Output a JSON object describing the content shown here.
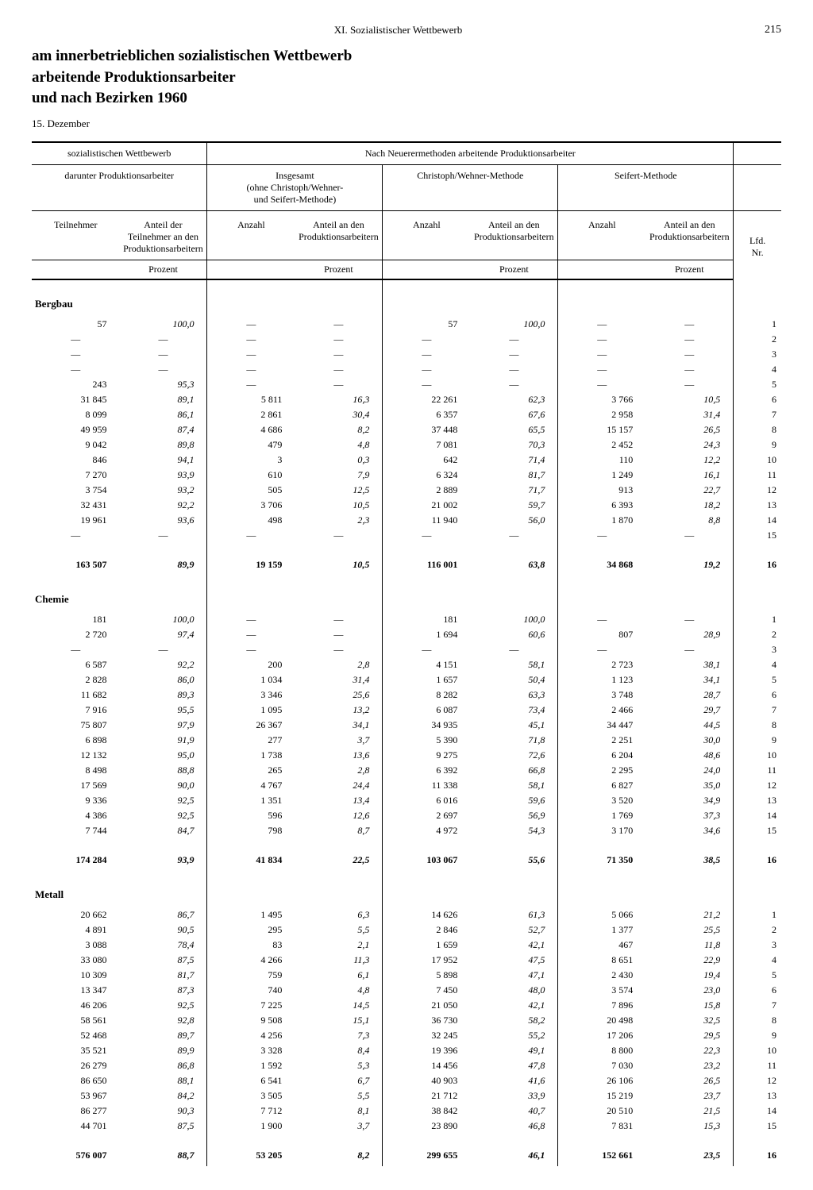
{
  "running_head": "XI. Sozialistischer Wettbewerb",
  "page_number": "215",
  "title_line1": "am innerbetrieblichen sozialistischen Wettbewerb",
  "title_line2": "arbeitende Produktionsarbeiter",
  "title_line3": "und nach Bezirken 1960",
  "survey_date": "15. Dezember",
  "header": {
    "group_left": "sozialistischen Wettbewerb",
    "group_right": "Nach Neuerermethoden arbeitende Produktionsarbeiter",
    "sub_left": "darunter Produktionsarbeiter",
    "sub_insg": "Insgesamt\n(ohne Christoph/Wehner-\nund Seifert-Methode)",
    "sub_cw": "Christoph/Wehner-Methode",
    "sub_seif": "Seifert-Methode",
    "col_teilnehmer": "Teilnehmer",
    "col_anteil_teiln": "Anteil der Teilnehmer an den Produktions­arbeitern",
    "col_anzahl": "Anzahl",
    "col_anteil_prod": "Anteil an den Produktions­arbeitern",
    "col_lfd": "Lfd.\nNr.",
    "unit_prozent": "Prozent"
  },
  "sections": [
    {
      "name": "Bergbau",
      "rows": [
        [
          "57",
          "100,0",
          "—",
          "—",
          "57",
          "100,0",
          "—",
          "—",
          "1"
        ],
        [
          "—",
          "—",
          "—",
          "—",
          "—",
          "—",
          "—",
          "—",
          "2"
        ],
        [
          "—",
          "—",
          "—",
          "—",
          "—",
          "—",
          "—",
          "—",
          "3"
        ],
        [
          "—",
          "—",
          "—",
          "—",
          "—",
          "—",
          "—",
          "—",
          "4"
        ],
        [
          "243",
          "95,3",
          "—",
          "—",
          "—",
          "—",
          "—",
          "—",
          "5"
        ],
        [
          "31 845",
          "89,1",
          "5 811",
          "16,3",
          "22 261",
          "62,3",
          "3 766",
          "10,5",
          "6"
        ],
        [
          "8 099",
          "86,1",
          "2 861",
          "30,4",
          "6 357",
          "67,6",
          "2 958",
          "31,4",
          "7"
        ],
        [
          "49 959",
          "87,4",
          "4 686",
          "8,2",
          "37 448",
          "65,5",
          "15 157",
          "26,5",
          "8"
        ],
        [
          "9 042",
          "89,8",
          "479",
          "4,8",
          "7 081",
          "70,3",
          "2 452",
          "24,3",
          "9"
        ],
        [
          "846",
          "94,1",
          "3",
          "0,3",
          "642",
          "71,4",
          "110",
          "12,2",
          "10"
        ],
        [
          "7 270",
          "93,9",
          "610",
          "7,9",
          "6 324",
          "81,7",
          "1 249",
          "16,1",
          "11"
        ],
        [
          "3 754",
          "93,2",
          "505",
          "12,5",
          "2 889",
          "71,7",
          "913",
          "22,7",
          "12"
        ],
        [
          "32 431",
          "92,2",
          "3 706",
          "10,5",
          "21 002",
          "59,7",
          "6 393",
          "18,2",
          "13"
        ],
        [
          "19 961",
          "93,6",
          "498",
          "2,3",
          "11 940",
          "56,0",
          "1 870",
          "8,8",
          "14"
        ],
        [
          "—",
          "—",
          "—",
          "—",
          "—",
          "—",
          "—",
          "—",
          "15"
        ]
      ],
      "total": [
        "163 507",
        "89,9",
        "19 159",
        "10,5",
        "116 001",
        "63,8",
        "34 868",
        "19,2",
        "16"
      ]
    },
    {
      "name": "Chemie",
      "rows": [
        [
          "181",
          "100,0",
          "—",
          "—",
          "181",
          "100,0",
          "—",
          "—",
          "1"
        ],
        [
          "2 720",
          "97,4",
          "—",
          "—",
          "1 694",
          "60,6",
          "807",
          "28,9",
          "2"
        ],
        [
          "—",
          "—",
          "—",
          "—",
          "—",
          "—",
          "—",
          "—",
          "3"
        ],
        [
          "6 587",
          "92,2",
          "200",
          "2,8",
          "4 151",
          "58,1",
          "2 723",
          "38,1",
          "4"
        ],
        [
          "2 828",
          "86,0",
          "1 034",
          "31,4",
          "1 657",
          "50,4",
          "1 123",
          "34,1",
          "5"
        ],
        [
          "11 682",
          "89,3",
          "3 346",
          "25,6",
          "8 282",
          "63,3",
          "3 748",
          "28,7",
          "6"
        ],
        [
          "7 916",
          "95,5",
          "1 095",
          "13,2",
          "6 087",
          "73,4",
          "2 466",
          "29,7",
          "7"
        ],
        [
          "75 807",
          "97,9",
          "26 367",
          "34,1",
          "34 935",
          "45,1",
          "34 447",
          "44,5",
          "8"
        ],
        [
          "6 898",
          "91,9",
          "277",
          "3,7",
          "5 390",
          "71,8",
          "2 251",
          "30,0",
          "9"
        ],
        [
          "12 132",
          "95,0",
          "1 738",
          "13,6",
          "9 275",
          "72,6",
          "6 204",
          "48,6",
          "10"
        ],
        [
          "8 498",
          "88,8",
          "265",
          "2,8",
          "6 392",
          "66,8",
          "2 295",
          "24,0",
          "11"
        ],
        [
          "17 569",
          "90,0",
          "4 767",
          "24,4",
          "11 338",
          "58,1",
          "6 827",
          "35,0",
          "12"
        ],
        [
          "9 336",
          "92,5",
          "1 351",
          "13,4",
          "6 016",
          "59,6",
          "3 520",
          "34,9",
          "13"
        ],
        [
          "4 386",
          "92,5",
          "596",
          "12,6",
          "2 697",
          "56,9",
          "1 769",
          "37,3",
          "14"
        ],
        [
          "7 744",
          "84,7",
          "798",
          "8,7",
          "4 972",
          "54,3",
          "3 170",
          "34,6",
          "15"
        ]
      ],
      "total": [
        "174 284",
        "93,9",
        "41 834",
        "22,5",
        "103 067",
        "55,6",
        "71 350",
        "38,5",
        "16"
      ]
    },
    {
      "name": "Metall",
      "rows": [
        [
          "20 662",
          "86,7",
          "1 495",
          "6,3",
          "14 626",
          "61,3",
          "5 066",
          "21,2",
          "1"
        ],
        [
          "4 891",
          "90,5",
          "295",
          "5,5",
          "2 846",
          "52,7",
          "1 377",
          "25,5",
          "2"
        ],
        [
          "3 088",
          "78,4",
          "83",
          "2,1",
          "1 659",
          "42,1",
          "467",
          "11,8",
          "3"
        ],
        [
          "33 080",
          "87,5",
          "4 266",
          "11,3",
          "17 952",
          "47,5",
          "8 651",
          "22,9",
          "4"
        ],
        [
          "10 309",
          "81,7",
          "759",
          "6,1",
          "5 898",
          "47,1",
          "2 430",
          "19,4",
          "5"
        ],
        [
          "13 347",
          "87,3",
          "740",
          "4,8",
          "7 450",
          "48,0",
          "3 574",
          "23,0",
          "6"
        ],
        [
          "46 206",
          "92,5",
          "7 225",
          "14,5",
          "21 050",
          "42,1",
          "7 896",
          "15,8",
          "7"
        ],
        [
          "58 561",
          "92,8",
          "9 508",
          "15,1",
          "36 730",
          "58,2",
          "20 498",
          "32,5",
          "8"
        ],
        [
          "52 468",
          "89,7",
          "4 256",
          "7,3",
          "32 245",
          "55,2",
          "17 206",
          "29,5",
          "9"
        ],
        [
          "35 521",
          "89,9",
          "3 328",
          "8,4",
          "19 396",
          "49,1",
          "8 800",
          "22,3",
          "10"
        ],
        [
          "26 279",
          "86,8",
          "1 592",
          "5,3",
          "14 456",
          "47,8",
          "7 030",
          "23,2",
          "11"
        ],
        [
          "86 650",
          "88,1",
          "6 541",
          "6,7",
          "40 903",
          "41,6",
          "26 106",
          "26,5",
          "12"
        ],
        [
          "53 967",
          "84,2",
          "3 505",
          "5,5",
          "21 712",
          "33,9",
          "15 219",
          "23,7",
          "13"
        ],
        [
          "86 277",
          "90,3",
          "7 712",
          "8,1",
          "38 842",
          "40,7",
          "20 510",
          "21,5",
          "14"
        ],
        [
          "44 701",
          "87,5",
          "1 900",
          "3,7",
          "23 890",
          "46,8",
          "7 831",
          "15,3",
          "15"
        ]
      ],
      "total": [
        "576 007",
        "88,7",
        "53 205",
        "8,2",
        "299 655",
        "46,1",
        "152 661",
        "23,5",
        "16"
      ]
    }
  ]
}
